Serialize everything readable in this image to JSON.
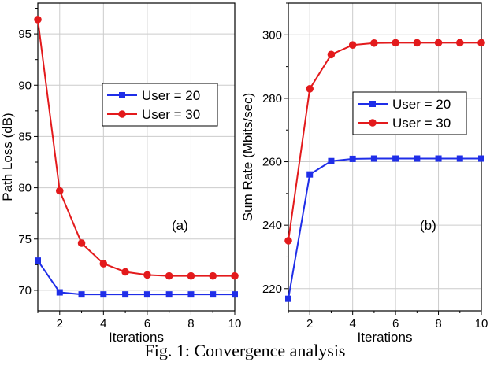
{
  "caption": "Fig. 1: Convergence analysis",
  "colors": {
    "series_a": "#1f2ee8",
    "series_b": "#e31a1c",
    "grid": "#cccccc"
  },
  "chart_data": [
    {
      "type": "line",
      "panel_label": "(a)",
      "title": "",
      "xlabel": "Iterations",
      "ylabel": "Path Loss (dB)",
      "x": [
        1,
        2,
        3,
        4,
        5,
        6,
        7,
        8,
        9,
        10
      ],
      "xlim": [
        1,
        10
      ],
      "ylim": [
        68,
        98
      ],
      "xticks": [
        2,
        4,
        6,
        8,
        10
      ],
      "yticks": [
        70,
        75,
        80,
        85,
        90,
        95
      ],
      "grid": true,
      "legend_position": "center-right",
      "series": [
        {
          "name": "User = 20",
          "marker": "square",
          "color": "#1f2ee8",
          "values": [
            72.9,
            69.8,
            69.6,
            69.6,
            69.6,
            69.6,
            69.6,
            69.6,
            69.6,
            69.6
          ]
        },
        {
          "name": "User = 30",
          "marker": "circle",
          "color": "#e31a1c",
          "values": [
            96.4,
            79.7,
            74.6,
            72.6,
            71.8,
            71.5,
            71.4,
            71.4,
            71.4,
            71.4
          ]
        }
      ]
    },
    {
      "type": "line",
      "panel_label": "(b)",
      "title": "",
      "xlabel": "Iterations",
      "ylabel": "Sum Rate (Mbits/sec)",
      "x": [
        1,
        2,
        3,
        4,
        5,
        6,
        7,
        8,
        9,
        10
      ],
      "xlim": [
        1,
        10
      ],
      "ylim": [
        213,
        310
      ],
      "xticks": [
        2,
        4,
        6,
        8,
        10
      ],
      "yticks": [
        220,
        240,
        260,
        280,
        300
      ],
      "grid": true,
      "legend_position": "center-right",
      "series": [
        {
          "name": "User = 20",
          "marker": "square",
          "color": "#1f2ee8",
          "values": [
            216.8,
            256.0,
            260.2,
            260.9,
            261.0,
            261.0,
            261.0,
            261.0,
            261.0,
            261.0
          ]
        },
        {
          "name": "User = 30",
          "marker": "circle",
          "color": "#e31a1c",
          "values": [
            235.1,
            283.0,
            293.8,
            296.8,
            297.4,
            297.5,
            297.5,
            297.5,
            297.5,
            297.5
          ]
        }
      ]
    }
  ]
}
